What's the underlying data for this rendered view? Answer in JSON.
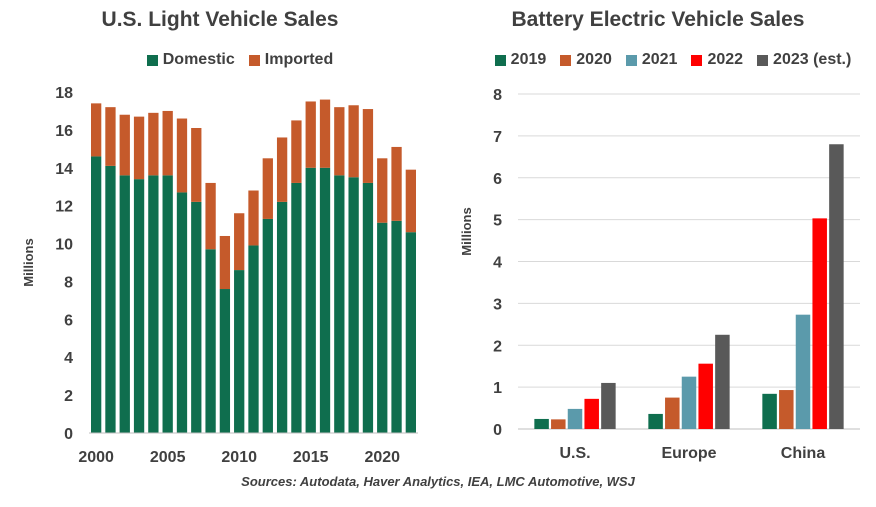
{
  "chart_data": [
    {
      "type": "bar",
      "stacked": true,
      "title": "U.S. Light Vehicle Sales",
      "ylabel": "Millions",
      "ylim": [
        0,
        18
      ],
      "yticks": [
        0,
        2,
        4,
        6,
        8,
        10,
        12,
        14,
        16,
        18
      ],
      "x": [
        2000,
        2001,
        2002,
        2003,
        2004,
        2005,
        2006,
        2007,
        2008,
        2009,
        2010,
        2011,
        2012,
        2013,
        2014,
        2015,
        2016,
        2017,
        2018,
        2019,
        2020,
        2021,
        2022
      ],
      "xticks": [
        2000,
        2005,
        2010,
        2015,
        2020
      ],
      "legend_position": "top",
      "grid": false,
      "series": [
        {
          "name": "Domestic",
          "color": "#0f6e4e",
          "values": [
            14.6,
            14.1,
            13.6,
            13.4,
            13.6,
            13.6,
            12.7,
            12.2,
            9.7,
            7.6,
            8.6,
            9.9,
            11.3,
            12.2,
            13.2,
            14.0,
            14.0,
            13.6,
            13.5,
            13.2,
            11.1,
            11.2,
            10.6
          ]
        },
        {
          "name": "Imported",
          "color": "#c55a2b",
          "values": [
            2.8,
            3.1,
            3.2,
            3.3,
            3.3,
            3.4,
            3.9,
            3.9,
            3.5,
            2.8,
            3.0,
            2.9,
            3.2,
            3.4,
            3.3,
            3.5,
            3.6,
            3.6,
            3.8,
            3.9,
            3.4,
            3.9,
            3.3
          ]
        }
      ]
    },
    {
      "type": "bar",
      "title": "Battery Electric Vehicle Sales",
      "ylabel": "Millions",
      "ylim": [
        0,
        8
      ],
      "yticks": [
        0,
        1,
        2,
        3,
        4,
        5,
        6,
        7,
        8
      ],
      "categories": [
        "U.S.",
        "Europe",
        "China"
      ],
      "legend_position": "top",
      "grid": true,
      "series": [
        {
          "name": "2019",
          "color": "#0f6e4e",
          "values": [
            0.24,
            0.36,
            0.84
          ]
        },
        {
          "name": "2020",
          "color": "#c55a2b",
          "values": [
            0.23,
            0.75,
            0.93
          ]
        },
        {
          "name": "2021",
          "color": "#5b9aab",
          "values": [
            0.48,
            1.25,
            2.73
          ]
        },
        {
          "name": "2022",
          "color": "#ff0000",
          "values": [
            0.72,
            1.56,
            5.03
          ]
        },
        {
          "name": "2023 (est.)",
          "color": "#595959",
          "values": [
            1.1,
            2.25,
            6.8
          ]
        }
      ]
    }
  ],
  "source": "Sources: Autodata, Haver Analytics, IEA, LMC Automotive, WSJ"
}
